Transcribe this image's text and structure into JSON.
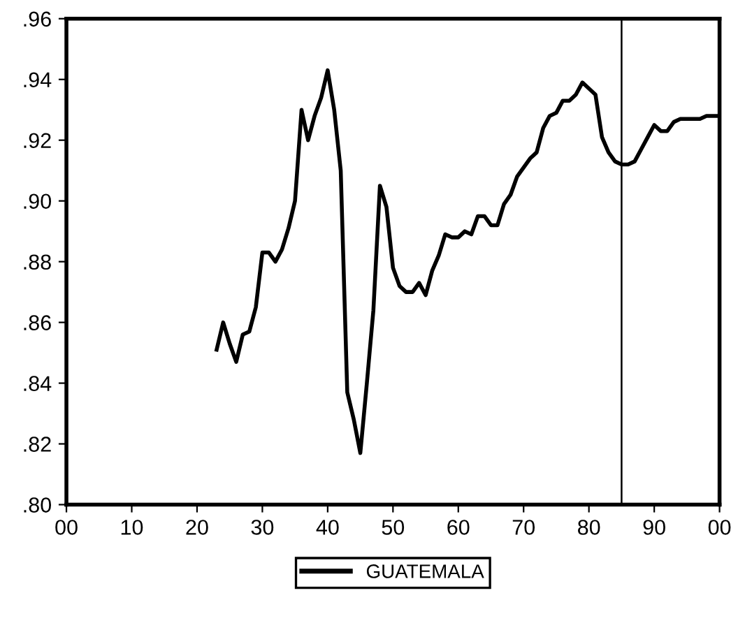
{
  "chart_data": {
    "type": "line",
    "x": [
      1923,
      1924,
      1925,
      1926,
      1927,
      1928,
      1929,
      1930,
      1931,
      1932,
      1933,
      1934,
      1935,
      1936,
      1937,
      1938,
      1939,
      1940,
      1941,
      1942,
      1943,
      1944,
      1945,
      1946,
      1947,
      1948,
      1949,
      1950,
      1951,
      1952,
      1953,
      1954,
      1955,
      1956,
      1957,
      1958,
      1959,
      1960,
      1961,
      1962,
      1963,
      1964,
      1965,
      1966,
      1967,
      1968,
      1969,
      1970,
      1971,
      1972,
      1973,
      1974,
      1975,
      1976,
      1977,
      1978,
      1979,
      1980,
      1981,
      1982,
      1983,
      1984,
      1985,
      1986,
      1987,
      1988,
      1989,
      1990,
      1991,
      1992,
      1993,
      1994,
      1995,
      1996,
      1997,
      1998,
      1999,
      2000
    ],
    "series": [
      {
        "name": "GUATEMALA",
        "color": "#000000",
        "values": [
          0.851,
          0.86,
          0.853,
          0.847,
          0.856,
          0.857,
          0.865,
          0.883,
          0.883,
          0.88,
          0.884,
          0.891,
          0.9,
          0.93,
          0.92,
          0.928,
          0.934,
          0.943,
          0.93,
          0.91,
          0.837,
          0.828,
          0.817,
          0.84,
          0.864,
          0.905,
          0.898,
          0.878,
          0.872,
          0.87,
          0.87,
          0.873,
          0.869,
          0.877,
          0.882,
          0.889,
          0.888,
          0.888,
          0.89,
          0.889,
          0.895,
          0.895,
          0.892,
          0.892,
          0.899,
          0.902,
          0.908,
          0.911,
          0.914,
          0.916,
          0.924,
          0.928,
          0.929,
          0.933,
          0.933,
          0.935,
          0.939,
          0.937,
          0.935,
          0.921,
          0.916,
          0.913,
          0.912,
          0.912,
          0.913,
          0.917,
          0.921,
          0.925,
          0.923,
          0.923,
          0.926,
          0.927,
          0.927,
          0.927,
          0.927,
          0.928,
          0.928,
          0.928
        ]
      }
    ],
    "xlim": [
      1900,
      2000
    ],
    "xticks": [
      {
        "value": 1900,
        "label": "00"
      },
      {
        "value": 1910,
        "label": "10"
      },
      {
        "value": 1920,
        "label": "20"
      },
      {
        "value": 1930,
        "label": "30"
      },
      {
        "value": 1940,
        "label": "40"
      },
      {
        "value": 1950,
        "label": "50"
      },
      {
        "value": 1960,
        "label": "60"
      },
      {
        "value": 1970,
        "label": "70"
      },
      {
        "value": 1980,
        "label": "80"
      },
      {
        "value": 1990,
        "label": "90"
      },
      {
        "value": 2000,
        "label": "00"
      }
    ],
    "ylim": [
      0.8,
      0.96
    ],
    "yticks": [
      {
        "value": 0.8,
        "label": ".80"
      },
      {
        "value": 0.82,
        "label": ".82"
      },
      {
        "value": 0.84,
        "label": ".84"
      },
      {
        "value": 0.86,
        "label": ".86"
      },
      {
        "value": 0.88,
        "label": ".88"
      },
      {
        "value": 0.9,
        "label": ".90"
      },
      {
        "value": 0.92,
        "label": ".92"
      },
      {
        "value": 0.94,
        "label": ".94"
      },
      {
        "value": 0.96,
        "label": ".96"
      }
    ],
    "ref_lines": [
      {
        "axis": "x",
        "value": 1985,
        "color": "#000000"
      }
    ],
    "legend": "bottom",
    "grid": false,
    "line_style": "solid",
    "marker": "none"
  }
}
